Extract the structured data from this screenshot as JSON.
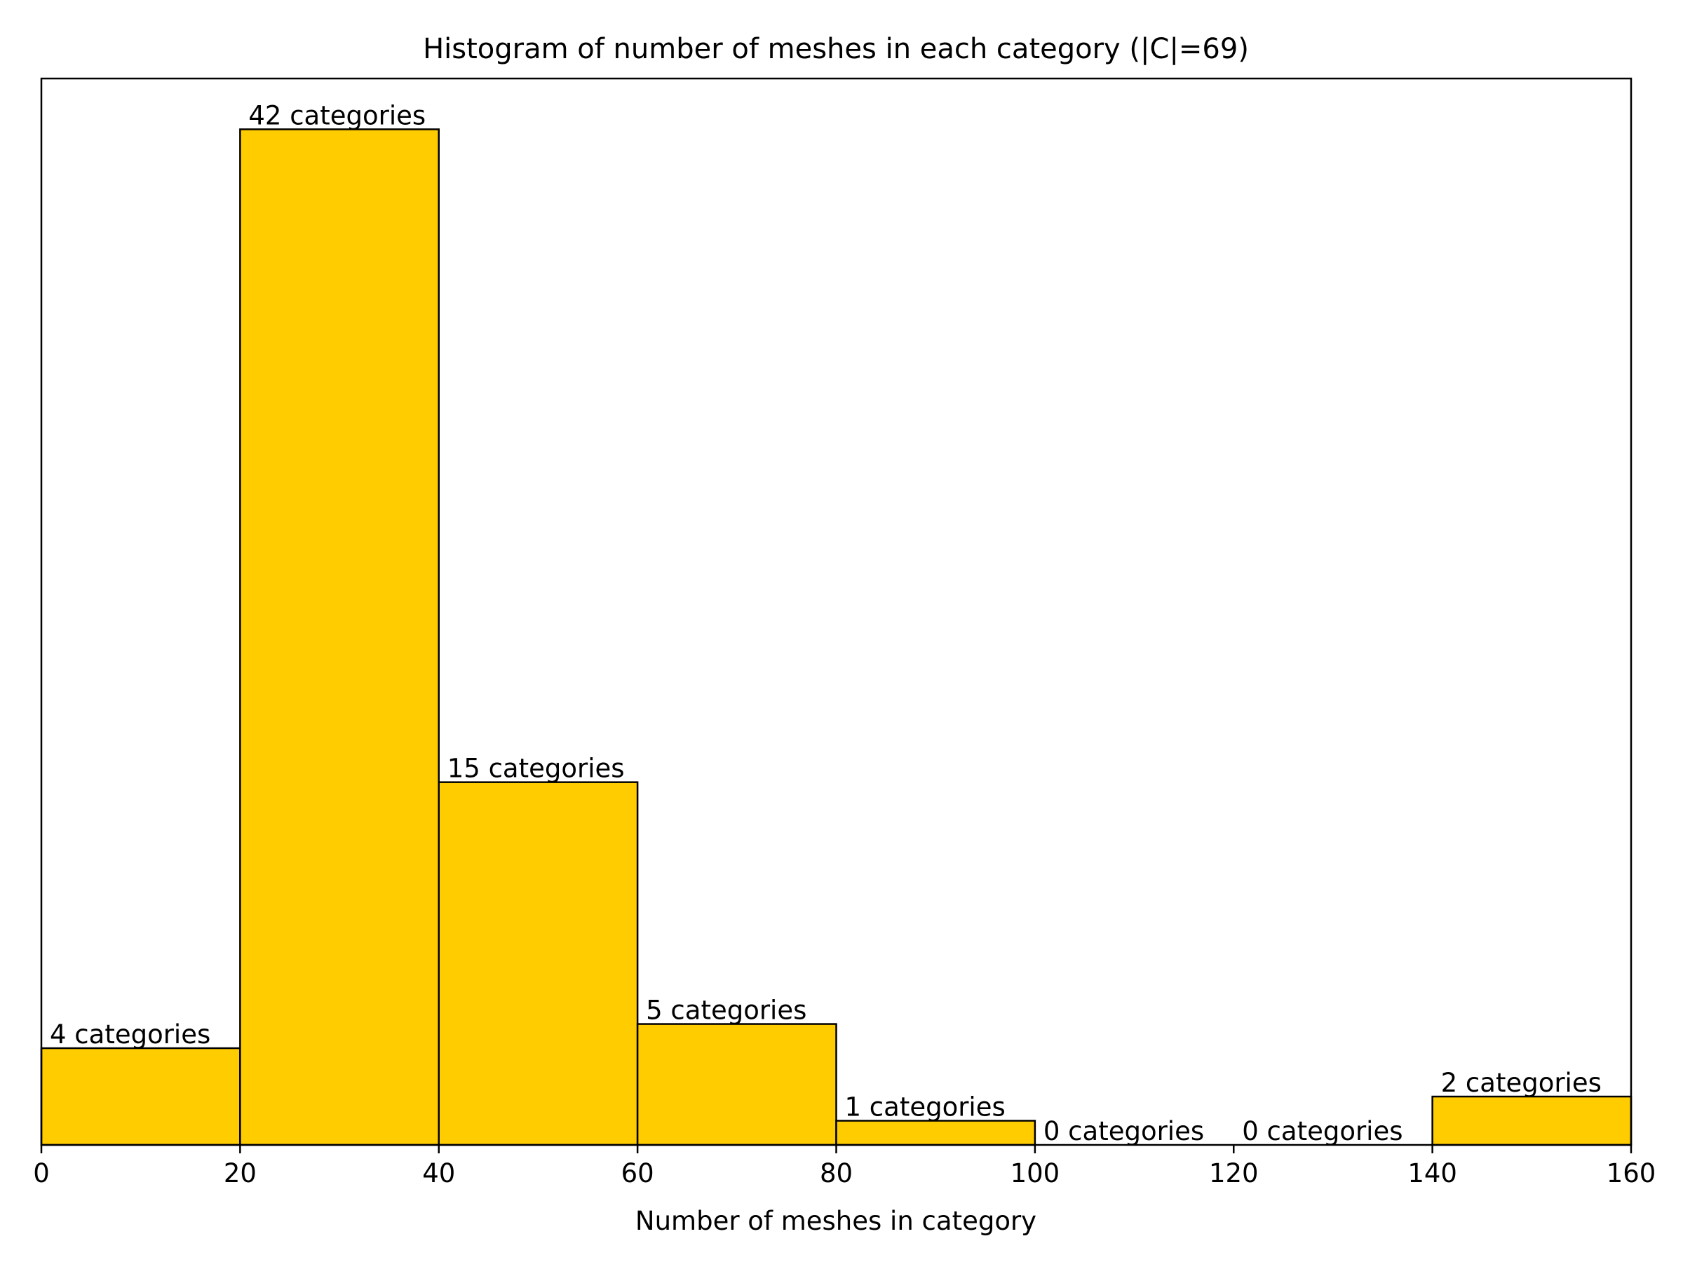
{
  "chart_data": {
    "type": "bar",
    "title": "Histogram of number of meshes in each category (|C|=69)",
    "xlabel": "Number of meshes in category",
    "ylabel": "",
    "bin_edges": [
      0,
      20,
      40,
      60,
      80,
      100,
      120,
      140,
      160
    ],
    "values": [
      4,
      42,
      15,
      5,
      1,
      0,
      0,
      2
    ],
    "bar_labels": [
      "4 categories",
      "42 categories",
      "15 categories",
      "5 categories",
      "1 categories",
      "0 categories",
      "0 categories",
      "2 categories"
    ],
    "xlim": [
      0,
      160
    ],
    "ylim": [
      0,
      44.1
    ],
    "x_ticks": [
      "0",
      "20",
      "40",
      "60",
      "80",
      "100",
      "120",
      "140",
      "160"
    ],
    "y_ticks_visible": false,
    "grid": false,
    "legend": "none",
    "colors": {
      "bar_fill": "#FFCC00",
      "bar_edge": "#000000"
    }
  }
}
